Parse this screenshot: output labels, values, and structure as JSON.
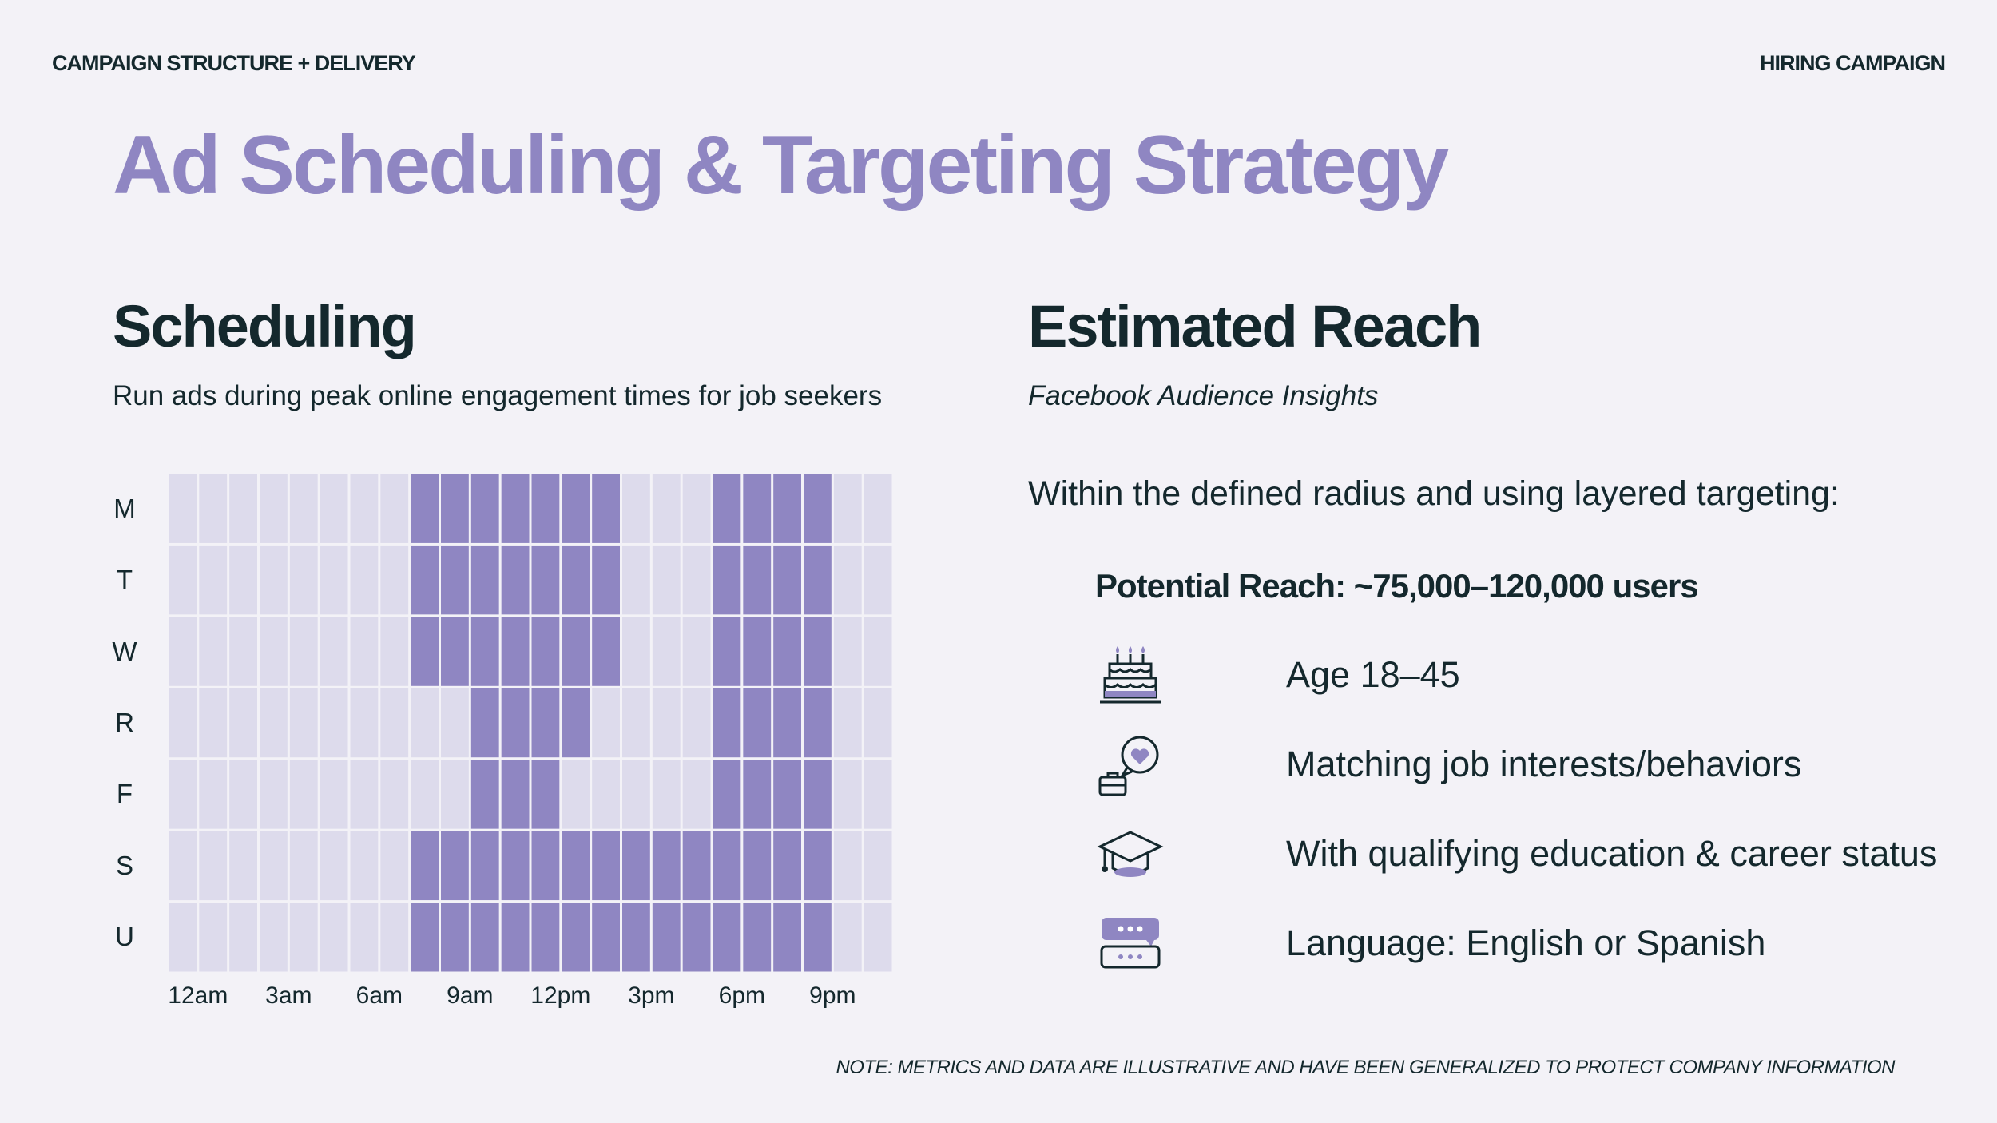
{
  "header": {
    "left": "CAMPAIGN STRUCTURE + DELIVERY",
    "right": "HIRING CAMPAIGN"
  },
  "title": "Ad Scheduling & Targeting Strategy",
  "scheduling": {
    "heading": "Scheduling",
    "subtitle": "Run ads during peak online engagement times for job seekers"
  },
  "reach": {
    "heading": "Estimated Reach",
    "subtitle": "Facebook Audience Insights",
    "intro": "Within the defined radius and using layered targeting:",
    "potential": "Potential Reach: ~75,000–120,000 users",
    "criteria": [
      {
        "label": "Age 18–45",
        "icon": "birthday-cake-icon"
      },
      {
        "label": "Matching job interests/behaviors",
        "icon": "job-interest-heart-briefcase-icon"
      },
      {
        "label": "With qualifying education & career status",
        "icon": "graduation-cap-icon"
      },
      {
        "label": "Language: English or Spanish",
        "icon": "language-chat-icon"
      }
    ]
  },
  "chart_data": {
    "type": "heatmap",
    "rows": [
      "M",
      "T",
      "W",
      "R",
      "F",
      "S",
      "U"
    ],
    "x_tick_labels": [
      "12am",
      "3am",
      "6am",
      "9am",
      "12pm",
      "3pm",
      "6pm",
      "9pm"
    ],
    "hours": 24,
    "active_hours": [
      [
        8,
        9,
        10,
        11,
        12,
        13,
        14,
        18,
        19,
        20,
        21
      ],
      [
        8,
        9,
        10,
        11,
        12,
        13,
        14,
        18,
        19,
        20,
        21
      ],
      [
        8,
        9,
        10,
        11,
        12,
        13,
        14,
        18,
        19,
        20,
        21
      ],
      [
        10,
        11,
        12,
        13,
        18,
        19,
        20,
        21
      ],
      [
        10,
        11,
        12,
        18,
        19,
        20,
        21
      ],
      [
        8,
        9,
        10,
        11,
        12,
        13,
        14,
        15,
        16,
        17,
        18,
        19,
        20,
        21
      ],
      [
        8,
        9,
        10,
        11,
        12,
        13,
        14,
        15,
        16,
        17,
        18,
        19,
        20,
        21
      ]
    ],
    "colors": {
      "active": "#8f86c2",
      "inactive": "#dddbec"
    }
  },
  "note": "NOTE: METRICS AND DATA ARE ILLUSTRATIVE AND HAVE BEEN GENERALIZED TO PROTECT COMPANY INFORMATION"
}
